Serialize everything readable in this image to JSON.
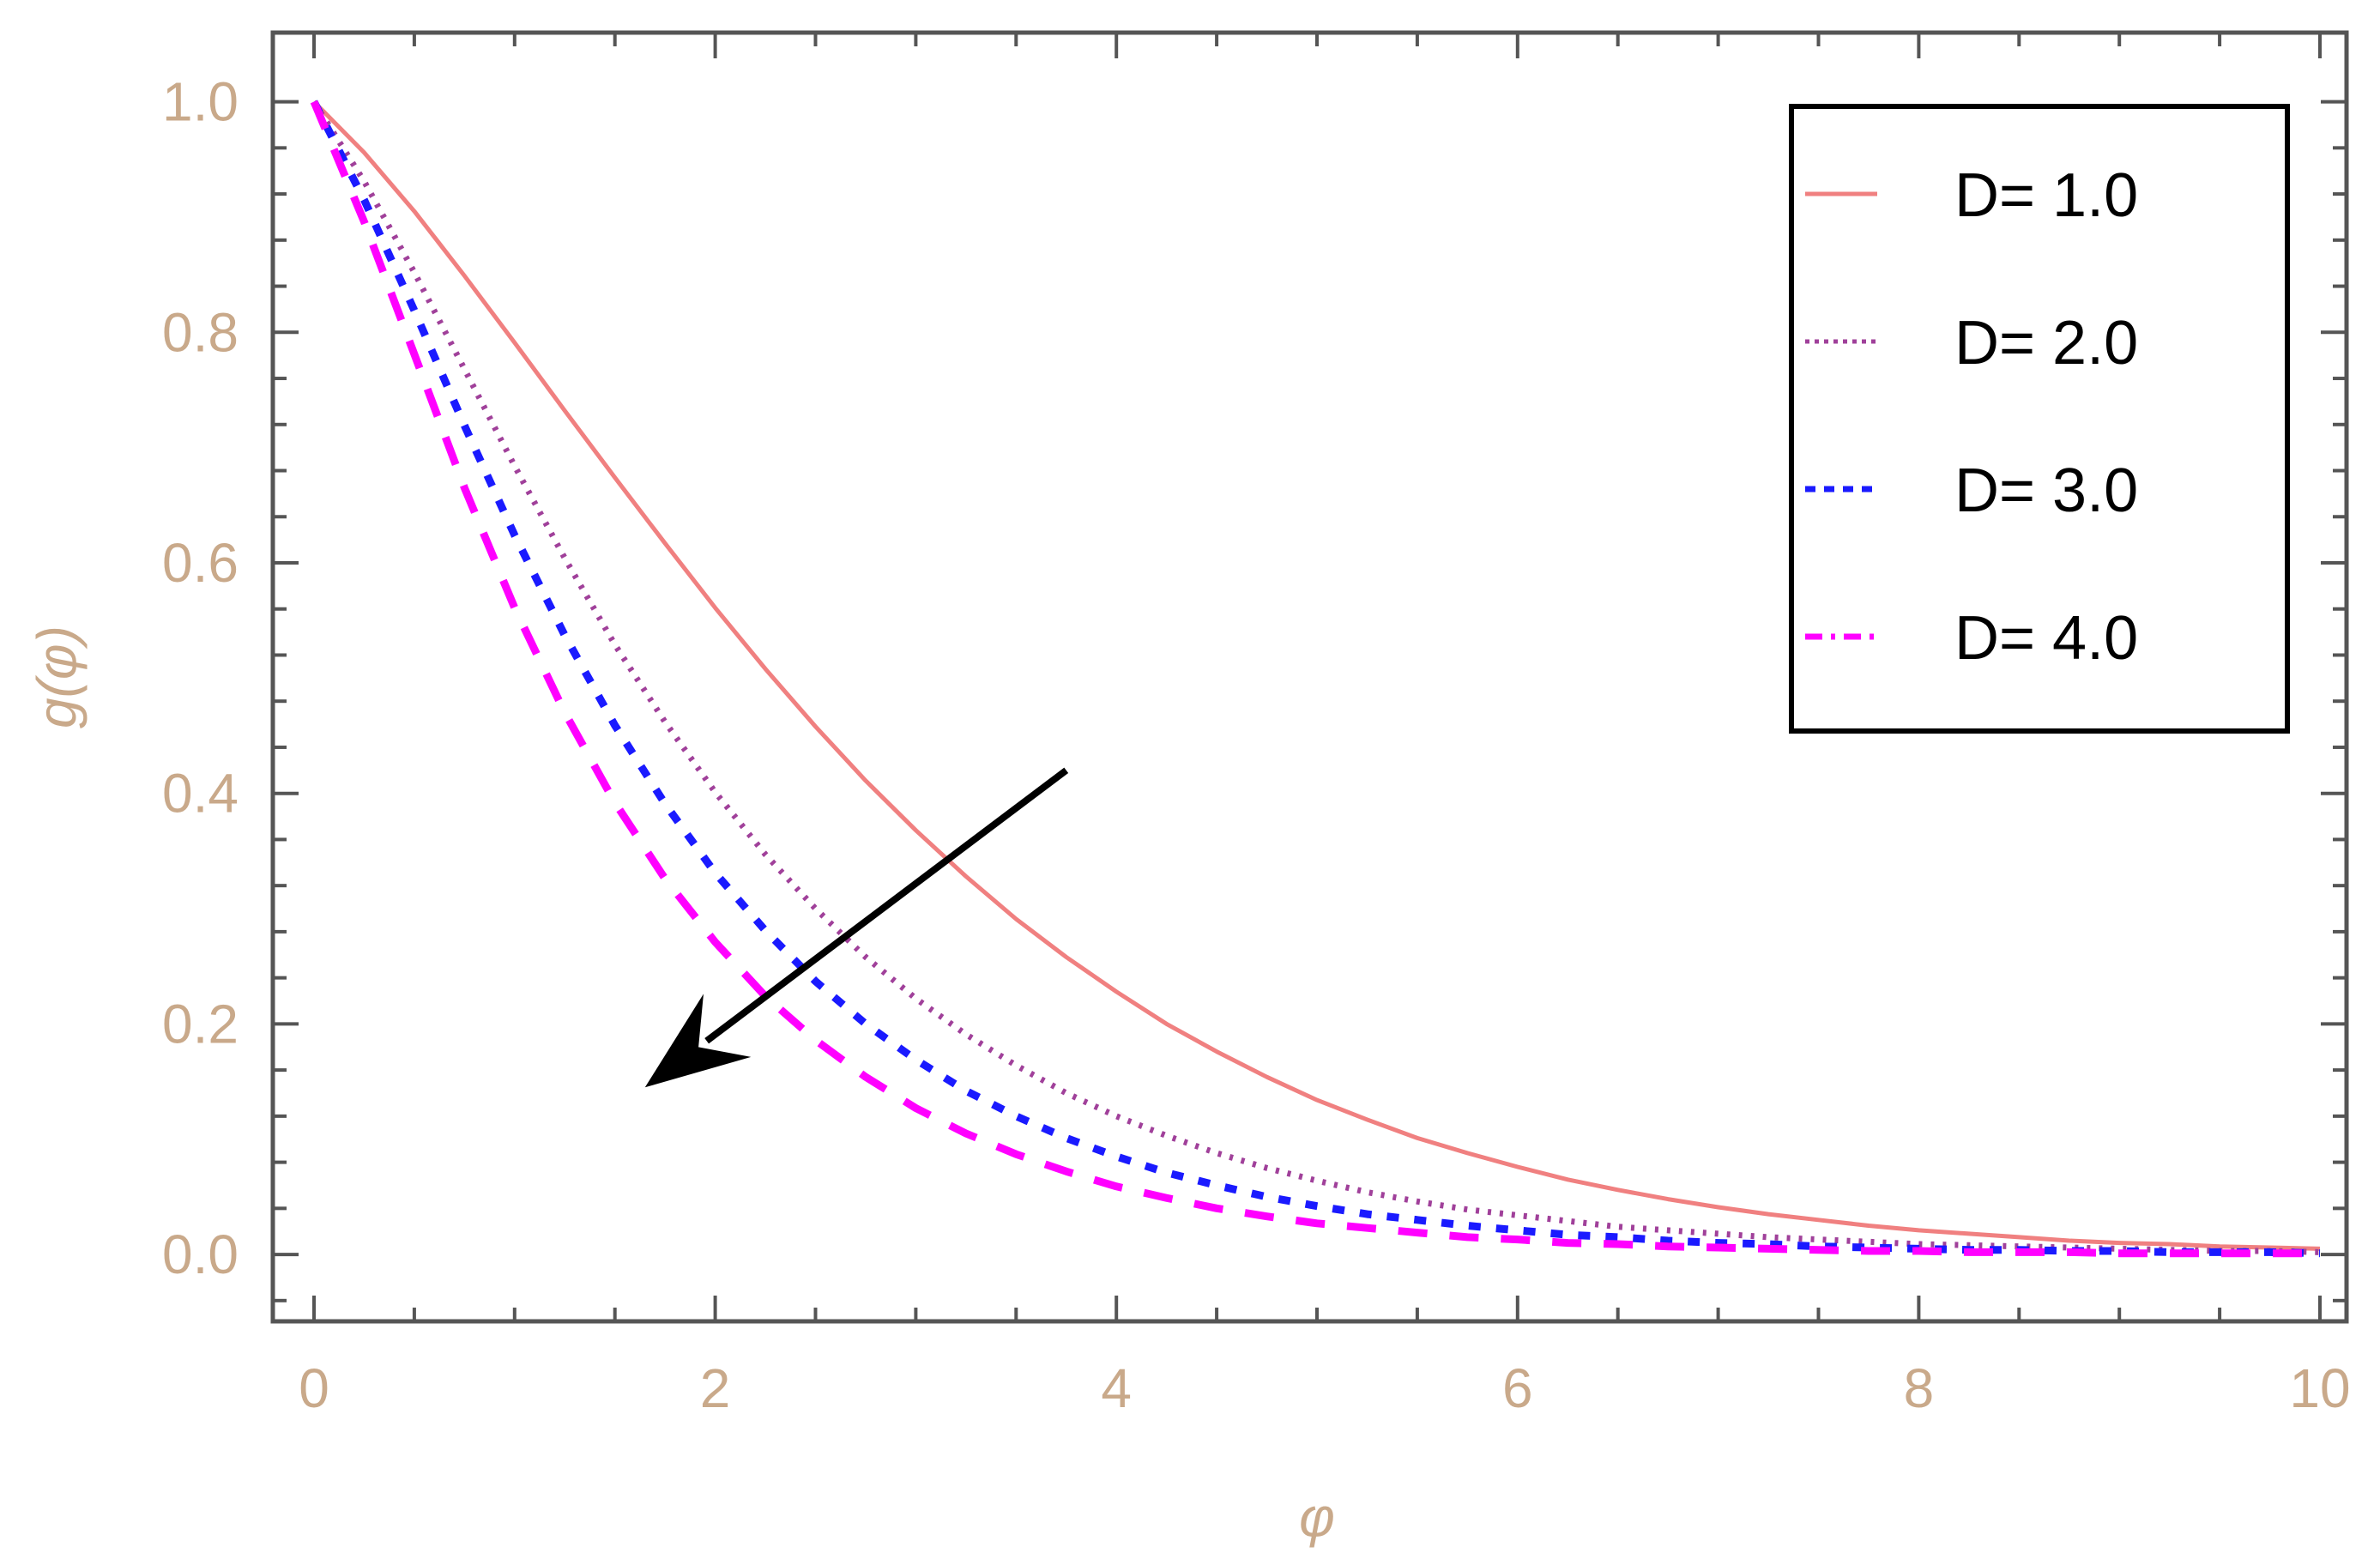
{
  "chart_data": {
    "type": "line",
    "xlabel": "φ",
    "ylabel": "g(φ)",
    "xlim": [
      0,
      10
    ],
    "ylim": [
      -0.058,
      1.06
    ],
    "x_ticks": [
      0,
      2,
      4,
      6,
      8,
      10
    ],
    "x_tick_labels": [
      "0",
      "2",
      "4",
      "6",
      "8",
      "10"
    ],
    "y_ticks": [
      0.0,
      0.2,
      0.4,
      0.6,
      0.8,
      1.0
    ],
    "y_tick_labels": [
      "0.0",
      "0.2",
      "0.4",
      "0.6",
      "0.8",
      "1.0"
    ],
    "grid": false,
    "legend_position": "top-right",
    "x": [
      0,
      0.25,
      0.5,
      0.75,
      1,
      1.25,
      1.5,
      1.75,
      2,
      2.25,
      2.5,
      2.75,
      3,
      3.25,
      3.5,
      3.75,
      4,
      4.25,
      4.5,
      4.75,
      5,
      5.25,
      5.5,
      5.75,
      6,
      6.25,
      6.5,
      6.75,
      7,
      7.25,
      7.5,
      7.75,
      8,
      8.25,
      8.5,
      8.75,
      9,
      9.25,
      9.5,
      9.75,
      10
    ],
    "series": [
      {
        "name": "D= 1.0",
        "color": "#f08080",
        "dash": "solid",
        "values": [
          1.0,
          0.956,
          0.905,
          0.849,
          0.791,
          0.732,
          0.674,
          0.617,
          0.561,
          0.508,
          0.458,
          0.411,
          0.368,
          0.328,
          0.291,
          0.258,
          0.228,
          0.2,
          0.176,
          0.154,
          0.134,
          0.117,
          0.101,
          0.088,
          0.076,
          0.065,
          0.056,
          0.048,
          0.041,
          0.035,
          0.03,
          0.025,
          0.021,
          0.018,
          0.015,
          0.012,
          0.01,
          0.009,
          0.007,
          0.006,
          0.005
        ]
      },
      {
        "name": "D= 2.0",
        "color": "#a0409a",
        "dash": "dotted",
        "values": [
          1.0,
          0.931,
          0.852,
          0.768,
          0.684,
          0.604,
          0.529,
          0.462,
          0.401,
          0.347,
          0.3,
          0.258,
          0.222,
          0.191,
          0.164,
          0.14,
          0.12,
          0.103,
          0.088,
          0.075,
          0.064,
          0.054,
          0.046,
          0.039,
          0.034,
          0.029,
          0.024,
          0.021,
          0.018,
          0.015,
          0.013,
          0.011,
          0.009,
          0.008,
          0.007,
          0.006,
          0.005,
          0.004,
          0.003,
          0.003,
          0.002
        ]
      },
      {
        "name": "D= 3.0",
        "color": "#1a1aff",
        "dash": "dashed",
        "values": [
          1.0,
          0.915,
          0.819,
          0.719,
          0.624,
          0.537,
          0.459,
          0.391,
          0.331,
          0.281,
          0.237,
          0.2,
          0.169,
          0.142,
          0.12,
          0.101,
          0.085,
          0.071,
          0.06,
          0.05,
          0.042,
          0.035,
          0.03,
          0.025,
          0.021,
          0.017,
          0.015,
          0.012,
          0.01,
          0.009,
          0.007,
          0.006,
          0.005,
          0.004,
          0.004,
          0.003,
          0.003,
          0.002,
          0.002,
          0.002,
          0.001
        ]
      },
      {
        "name": "D= 4.0",
        "color": "#ff00ff",
        "dash": "dashdot",
        "values": [
          1.0,
          0.896,
          0.781,
          0.665,
          0.561,
          0.47,
          0.392,
          0.326,
          0.271,
          0.224,
          0.186,
          0.154,
          0.127,
          0.105,
          0.087,
          0.072,
          0.059,
          0.049,
          0.04,
          0.033,
          0.027,
          0.023,
          0.019,
          0.015,
          0.013,
          0.01,
          0.009,
          0.007,
          0.006,
          0.005,
          0.004,
          0.003,
          0.003,
          0.002,
          0.002,
          0.002,
          0.001,
          0.001,
          0.001,
          0.001,
          0.001
        ]
      }
    ],
    "annotation": {
      "type": "arrow",
      "from": [
        3.75,
        0.42
      ],
      "to": [
        1.65,
        0.145
      ],
      "color": "#000000"
    }
  }
}
